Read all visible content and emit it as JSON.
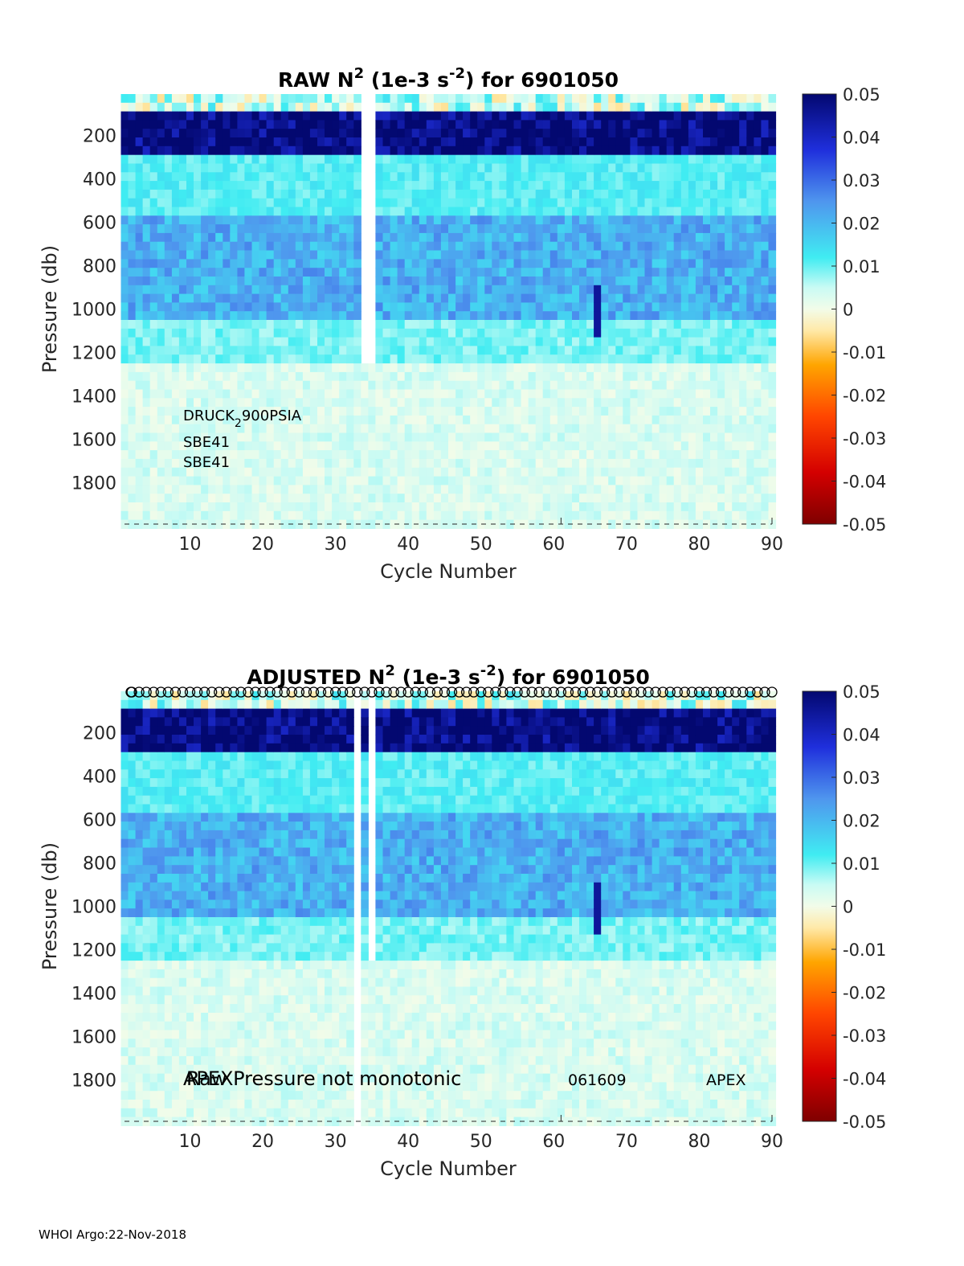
{
  "footer": "WHOI Argo:22-Nov-2018",
  "chart_data": [
    {
      "type": "heatmap",
      "title_prefix": "RAW N",
      "title_exp": "2",
      "title_mid": " (1e-3 s",
      "title_exp2": "-2",
      "title_suffix": ") for 6901050",
      "xlabel": "Cycle Number",
      "ylabel": "Pressure (db)",
      "xlim": [
        1,
        90
      ],
      "ylim": [
        1990,
        10
      ],
      "xticks": [
        "10",
        "20",
        "30",
        "40",
        "50",
        "60",
        "70",
        "80",
        "90"
      ],
      "yticks": [
        "200",
        "400",
        "600",
        "800",
        "1000",
        "1200",
        "1400",
        "1600",
        "1800"
      ],
      "colorbar": {
        "range": [
          -0.05,
          0.05
        ],
        "ticks": [
          "0.05",
          "0.04",
          "0.03",
          "0.02",
          "0.01",
          "0",
          "-0.01",
          "-0.02",
          "-0.03",
          "-0.04",
          "-0.05"
        ]
      },
      "missing_cycles": [
        34,
        35
      ],
      "missing_pressure_from": 1250,
      "annotations": {
        "sensor_a": "DRUCK",
        "sensor_a_sub": "2",
        "sensor_a_rest": "900PSIA",
        "sensor_b": "SBE41",
        "sensor_c": "SBE41"
      },
      "layers": [
        {
          "pmax": 80,
          "value": 0.003
        },
        {
          "pmax": 280,
          "value": 0.05
        },
        {
          "pmax": 550,
          "value": 0.011
        },
        {
          "pmax": 1050,
          "value": 0.021
        },
        {
          "pmax": 1250,
          "value": 0.009
        },
        {
          "pmax": 1990,
          "value": 0.003
        }
      ]
    },
    {
      "type": "heatmap",
      "title_prefix": "ADJUSTED N",
      "title_exp": "2",
      "title_mid": " (1e-3 s",
      "title_exp2": "-2",
      "title_suffix": ") for 6901050",
      "xlabel": "Cycle Number",
      "ylabel": "Pressure (db)",
      "xlim": [
        1,
        90
      ],
      "ylim": [
        1990,
        10
      ],
      "xticks": [
        "10",
        "20",
        "30",
        "40",
        "50",
        "60",
        "70",
        "80",
        "90"
      ],
      "yticks": [
        "200",
        "400",
        "600",
        "800",
        "1000",
        "1200",
        "1400",
        "1600",
        "1800"
      ],
      "colorbar": {
        "range": [
          -0.05,
          0.05
        ],
        "ticks": [
          "0.05",
          "0.04",
          "0.03",
          "0.02",
          "0.01",
          "0",
          "-0.01",
          "-0.02",
          "-0.03",
          "-0.04",
          "-0.05"
        ]
      },
      "missing_cycles": [
        33,
        35
      ],
      "missing_pressure_from": 1250,
      "qc_markers": "top-row circles",
      "annotations": {
        "apex_overlay": "APEX",
        "pressure_note": "Raw Pressure not monotonic",
        "firmware": "061609",
        "platform": "APEX"
      },
      "layers": [
        {
          "pmax": 80,
          "value": 0.003
        },
        {
          "pmax": 280,
          "value": 0.05
        },
        {
          "pmax": 550,
          "value": 0.011
        },
        {
          "pmax": 1050,
          "value": 0.021
        },
        {
          "pmax": 1250,
          "value": 0.009
        },
        {
          "pmax": 1990,
          "value": 0.003
        }
      ]
    }
  ]
}
